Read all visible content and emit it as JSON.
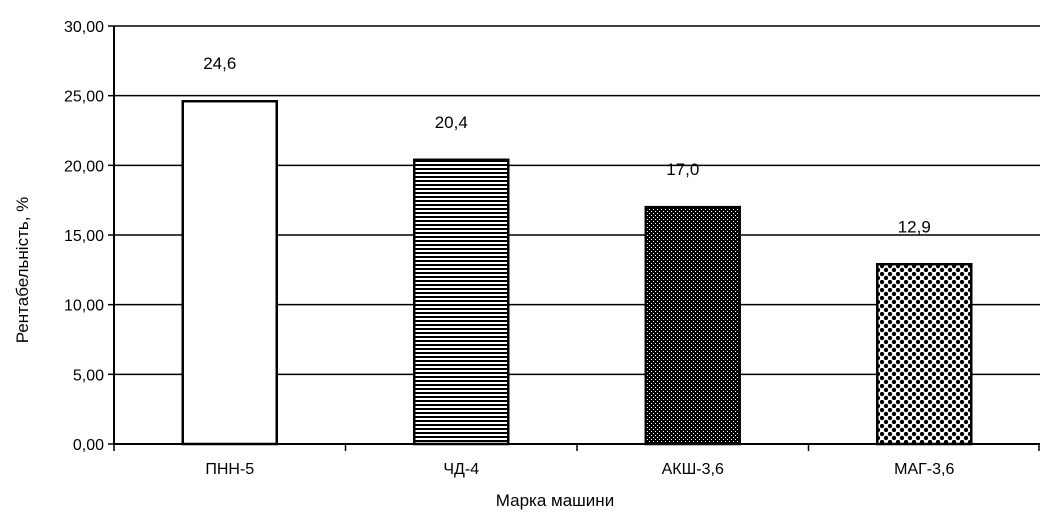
{
  "chart_data": {
    "type": "bar",
    "title": "",
    "xlabel": "Марка машини",
    "ylabel": "Рентабельність, %",
    "categories": [
      "ПНН-5",
      "ЧД-4",
      "АКШ-3,6",
      "МАГ-3,6"
    ],
    "values": [
      24.6,
      20.4,
      17.0,
      12.9
    ],
    "value_labels": [
      "24,6",
      "20,4",
      "17,0",
      "12,9"
    ],
    "ylim": [
      0,
      30
    ],
    "yticks": [
      "0,00",
      "5,00",
      "10,00",
      "15,00",
      "20,00",
      "25,00",
      "30,00"
    ],
    "grid": "horizontal",
    "bar_patterns": [
      "white",
      "horizontal-lines",
      "dense-dots",
      "checker-diamonds"
    ]
  }
}
